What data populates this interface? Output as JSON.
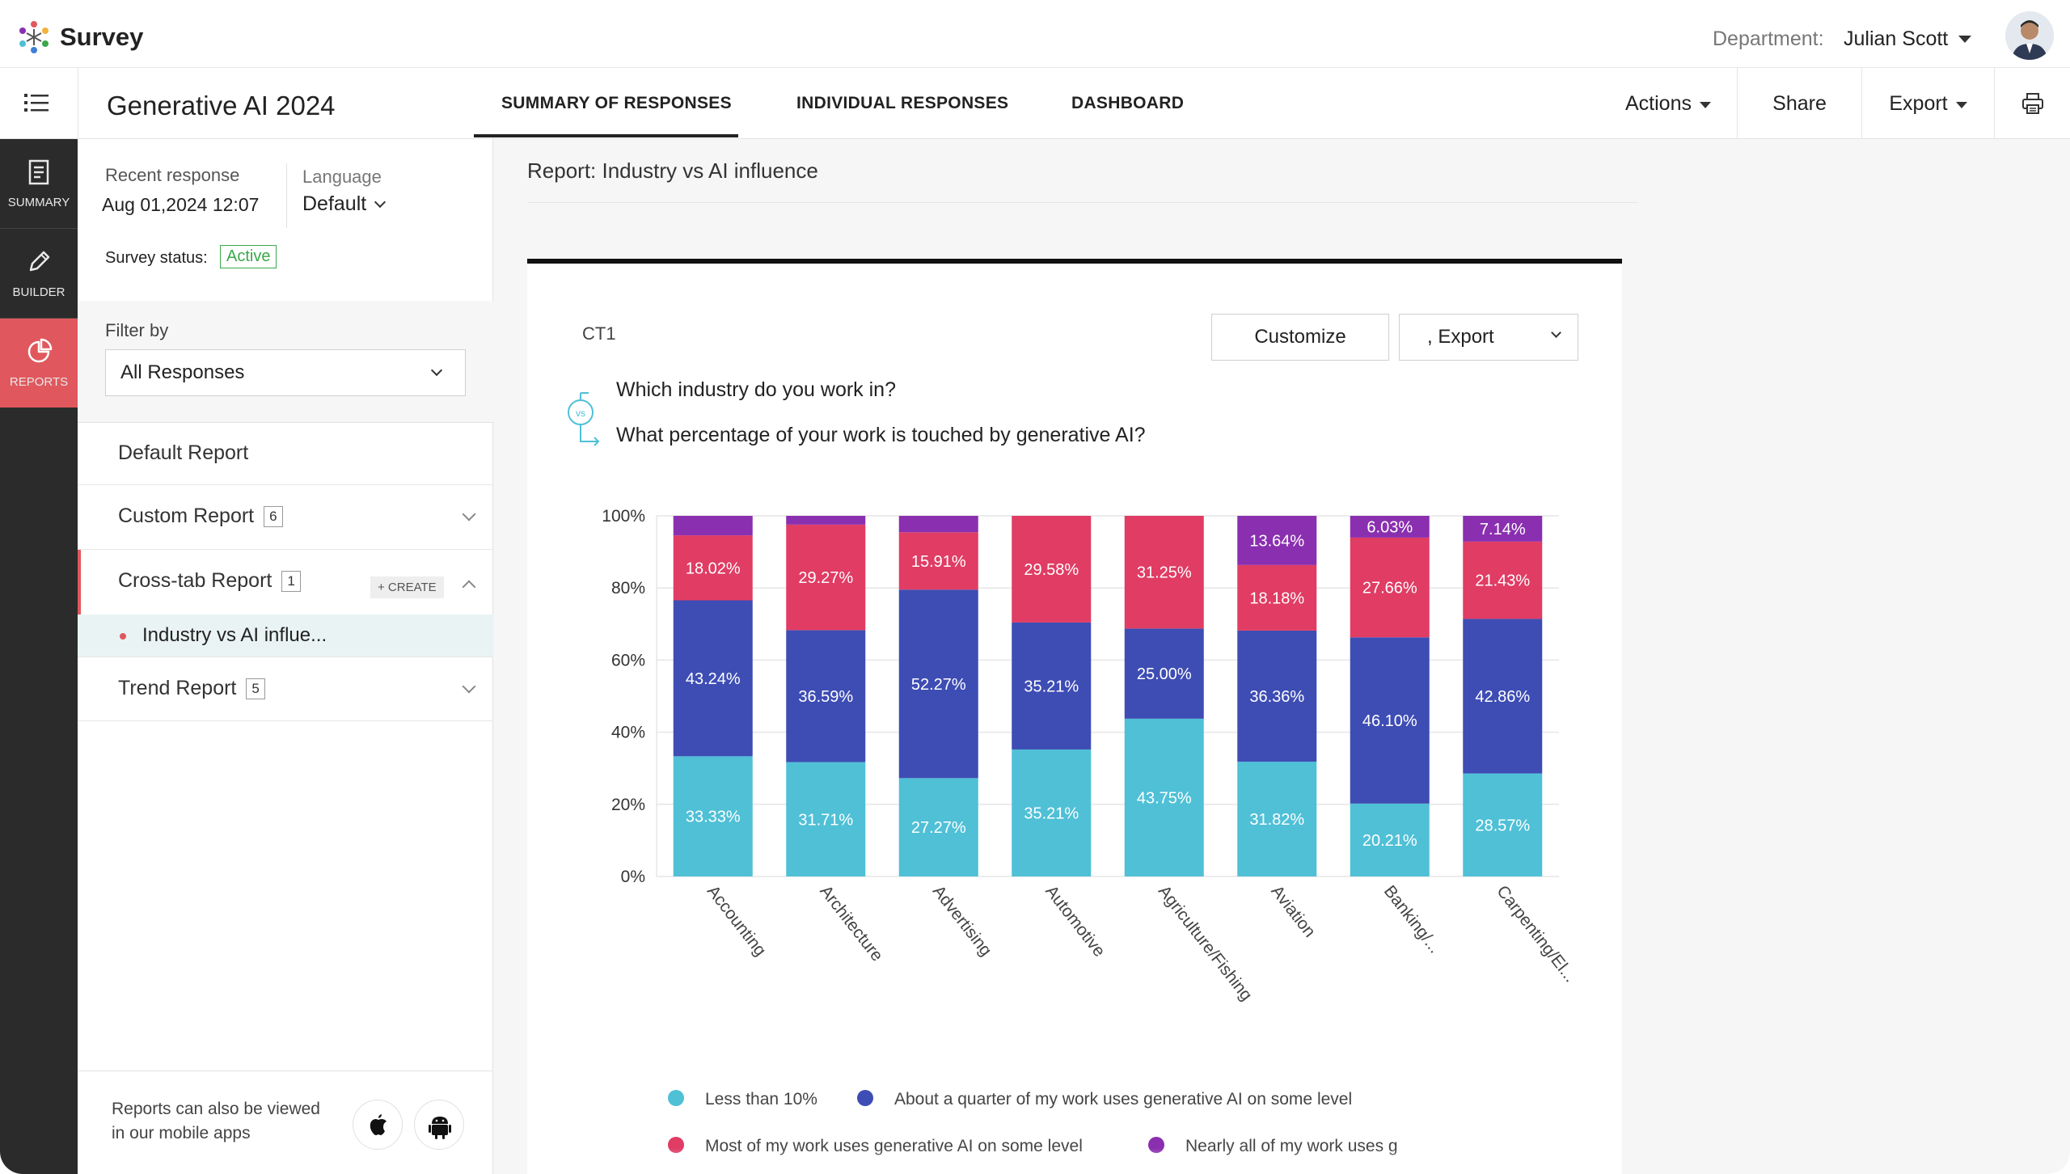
{
  "app": {
    "brand": "Survey"
  },
  "header": {
    "department_label": "Department:",
    "department_value": "Julian Scott"
  },
  "navbar": {
    "survey_title": "Generative AI 2024",
    "tabs": [
      {
        "label": "SUMMARY OF RESPONSES",
        "active": true
      },
      {
        "label": "INDIVIDUAL RESPONSES",
        "active": false
      },
      {
        "label": "DASHBOARD",
        "active": false
      }
    ],
    "actions_label": "Actions",
    "share_label": "Share",
    "export_label": "Export"
  },
  "rail": {
    "items": [
      {
        "label": "SUMMARY",
        "icon": "summary-icon",
        "active": false
      },
      {
        "label": "BUILDER",
        "icon": "pencil-icon",
        "active": false
      },
      {
        "label": "REPORTS",
        "icon": "pie-chart-icon",
        "active": true
      }
    ]
  },
  "panel": {
    "recent_label": "Recent response",
    "recent_value": "Aug 01,2024 12:07",
    "language_label": "Language",
    "language_value": "Default",
    "status_label": "Survey status:",
    "status_value": "Active",
    "filter_label": "Filter by",
    "filter_value": "All Responses",
    "reports": [
      {
        "label": "Default Report",
        "count": ""
      },
      {
        "label": "Custom Report",
        "count": "6"
      },
      {
        "label": "Cross-tab Report",
        "count": "1",
        "create": "+ CREATE"
      },
      {
        "label": "Trend Report",
        "count": "5"
      }
    ],
    "active_subreport": "Industry vs AI influe...",
    "mobile_note_line1": "Reports can also be viewed",
    "mobile_note_line2": "in our mobile apps"
  },
  "main": {
    "report_title": "Report: Industry vs AI influence",
    "card_code": "CT1",
    "customize_label": "Customize",
    "export_label": ", Export",
    "question_1": "Which industry do you work in?",
    "question_2": "What percentage of your work is touched by generative AI?",
    "vs_label": "vs"
  },
  "colors": {
    "teal": "#4fc0d6",
    "blue": "#3e4db4",
    "red": "#e03c64",
    "purple": "#8a2fb0",
    "accent": "#e0585d",
    "active_green": "#3ba84a"
  },
  "chart_data": {
    "type": "bar",
    "stacked": true,
    "categories": [
      "Accounting",
      "Architecture",
      "Advertising",
      "Automotive",
      "Agriculture/Fishing",
      "Aviation",
      "Banking/...",
      "Carpenting/El..."
    ],
    "y_tick_labels": [
      "0%",
      "20%",
      "40%",
      "60%",
      "80%",
      "100%"
    ],
    "ylim": [
      0,
      100
    ],
    "grid": true,
    "legend_position": "bottom",
    "series": [
      {
        "name": "Less than 10%",
        "color": "#4fc0d6",
        "values": [
          33.33,
          31.71,
          27.27,
          35.21,
          43.75,
          31.82,
          20.21,
          28.57
        ]
      },
      {
        "name": "About a quarter of my work uses generative AI on some level",
        "color": "#3e4db4",
        "values": [
          43.24,
          36.59,
          52.27,
          35.21,
          25.0,
          36.36,
          46.1,
          42.86
        ]
      },
      {
        "name": "Most of my work uses generative AI on some level",
        "color": "#e03c64",
        "values": [
          18.02,
          29.27,
          15.91,
          29.58,
          31.25,
          18.18,
          27.66,
          21.43
        ]
      },
      {
        "name": "Nearly all of my work uses g",
        "color": "#8a2fb0",
        "values": [
          5.41,
          2.43,
          4.55,
          0,
          0,
          13.64,
          6.03,
          7.14
        ]
      }
    ],
    "data_labels": [
      [
        "33.33%",
        "43.24%",
        "18.02%",
        ""
      ],
      [
        "31.71%",
        "36.59%",
        "29.27%",
        ""
      ],
      [
        "27.27%",
        "52.27%",
        "15.91%",
        ""
      ],
      [
        "35.21%",
        "35.21%",
        "29.58%",
        ""
      ],
      [
        "43.75%",
        "25.00%",
        "31.25%",
        ""
      ],
      [
        "31.82%",
        "36.36%",
        "18.18%",
        "13.64%"
      ],
      [
        "20.21%",
        "46.10%",
        "27.66%",
        "6.03%"
      ],
      [
        "28.57%",
        "42.86%",
        "21.43%",
        "7.14%"
      ]
    ]
  }
}
